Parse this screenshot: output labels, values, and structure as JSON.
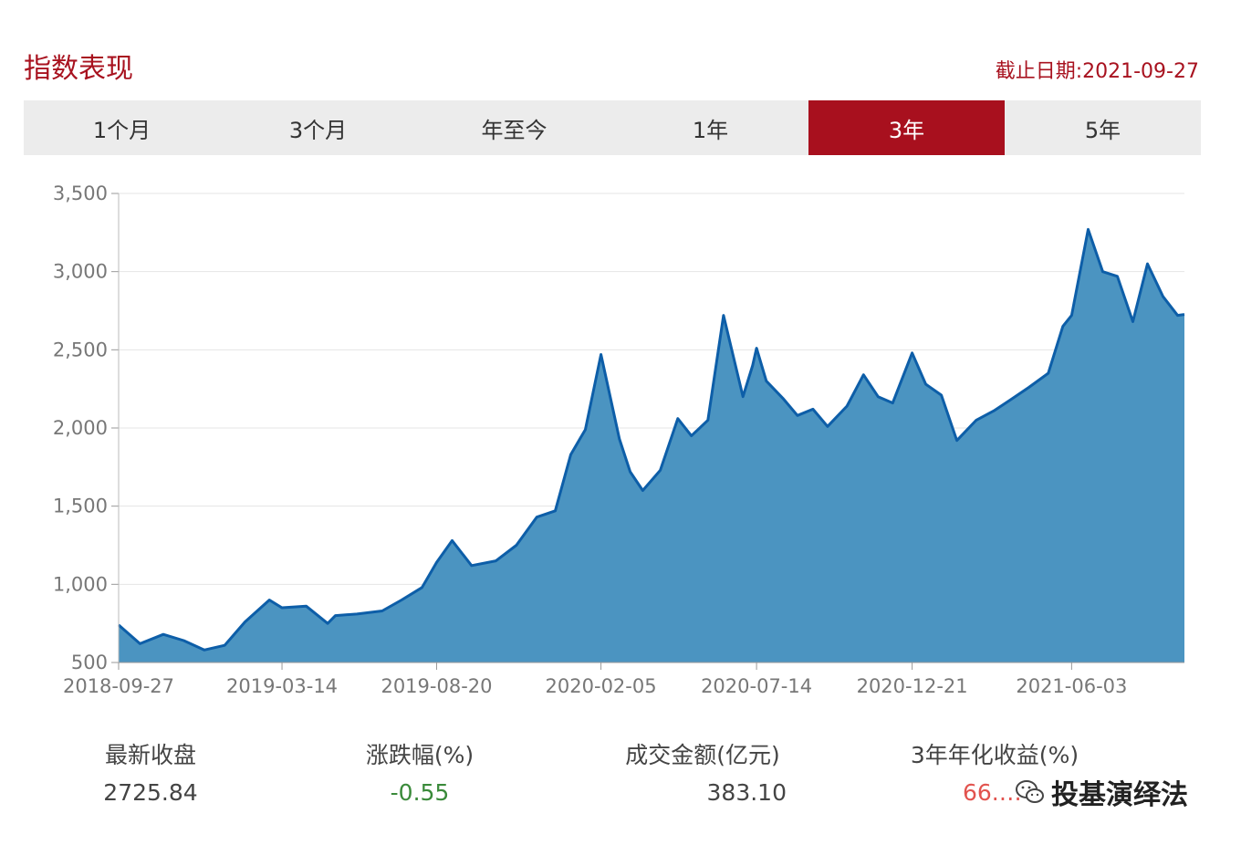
{
  "header": {
    "title": "指数表现",
    "as_of": "截止日期:2021-09-27"
  },
  "tabs": [
    {
      "label": "1个月",
      "active": false
    },
    {
      "label": "3个月",
      "active": false
    },
    {
      "label": "年至今",
      "active": false
    },
    {
      "label": "1年",
      "active": false
    },
    {
      "label": "3年",
      "active": true
    },
    {
      "label": "5年",
      "active": false
    }
  ],
  "colors": {
    "accent": "#a8101e",
    "area_fill": "#4b94c1",
    "line": "#0d5ea8"
  },
  "chart_data": {
    "type": "area",
    "title": "",
    "xlabel": "",
    "ylabel": "",
    "ylim": [
      500,
      3500
    ],
    "y_ticks": [
      "500",
      "1,000",
      "1,500",
      "2,000",
      "2,500",
      "3,000",
      "3,500"
    ],
    "x_ticks": [
      "2018-09-27",
      "2019-03-14",
      "2019-08-20",
      "2020-02-05",
      "2020-07-14",
      "2020-12-21",
      "2021-06-03"
    ],
    "grid": true,
    "series": [
      {
        "x": [
          "2018-09-27",
          "2018-10-19",
          "2018-11-12",
          "2018-12-03",
          "2018-12-24",
          "2019-01-14",
          "2019-02-04",
          "2019-03-01",
          "2019-03-14",
          "2019-04-08",
          "2019-04-30",
          "2019-05-08",
          "2019-05-30",
          "2019-06-25",
          "2019-07-15",
          "2019-08-05",
          "2019-08-20",
          "2019-09-05",
          "2019-09-25",
          "2019-10-20",
          "2019-11-10",
          "2019-12-01",
          "2019-12-20",
          "2020-01-05",
          "2020-01-20",
          "2020-02-05",
          "2020-02-24",
          "2020-03-06",
          "2020-03-19",
          "2020-04-06",
          "2020-04-24",
          "2020-05-08",
          "2020-05-25",
          "2020-06-10",
          "2020-06-30",
          "2020-07-10",
          "2020-07-14",
          "2020-07-24",
          "2020-08-10",
          "2020-08-25",
          "2020-09-10",
          "2020-09-25",
          "2020-10-15",
          "2020-11-01",
          "2020-11-16",
          "2020-12-01",
          "2020-12-21",
          "2021-01-04",
          "2021-01-20",
          "2021-02-05",
          "2021-02-25",
          "2021-03-15",
          "2021-04-01",
          "2021-04-20",
          "2021-05-10",
          "2021-05-25",
          "2021-06-03",
          "2021-06-20",
          "2021-07-05",
          "2021-07-20",
          "2021-08-05",
          "2021-08-20",
          "2021-09-05",
          "2021-09-20",
          "2021-09-27"
        ],
        "values": [
          740,
          620,
          680,
          640,
          580,
          610,
          760,
          900,
          850,
          860,
          750,
          800,
          810,
          830,
          900,
          980,
          1140,
          1280,
          1120,
          1150,
          1250,
          1430,
          1470,
          1830,
          1990,
          2470,
          1930,
          1720,
          1600,
          1730,
          2060,
          1950,
          2050,
          2720,
          2200,
          2400,
          2510,
          2300,
          2190,
          2080,
          2120,
          2010,
          2140,
          2340,
          2200,
          2160,
          2480,
          2280,
          2210,
          1920,
          2050,
          2110,
          2180,
          2260,
          2350,
          2650,
          2720,
          3270,
          3000,
          2970,
          2680,
          3050,
          2840,
          2720,
          2725.84
        ]
      }
    ]
  },
  "stats": {
    "latest_close": {
      "label": "最新收盘",
      "value": "2725.84"
    },
    "change_pct": {
      "label": "涨跌幅(%)",
      "value": "-0.55"
    },
    "turnover": {
      "label": "成交金额(亿元)",
      "value": "383.10"
    },
    "annualized_3y": {
      "label": "3年年化收益(%)",
      "value": "66.…"
    }
  },
  "watermark": {
    "text": "投基演绎法",
    "icon": "wechat-icon"
  }
}
